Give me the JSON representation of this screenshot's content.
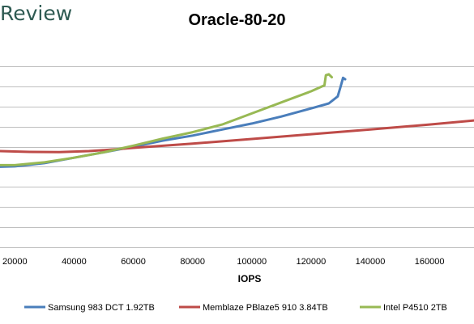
{
  "brand": {
    "text": "Review"
  },
  "chart_data": {
    "type": "line",
    "title": "Oracle-80-20",
    "xlabel": "IOPS",
    "ylabel": "",
    "xlim": [
      15000,
      175000
    ],
    "ylim": [
      0,
      10
    ],
    "x_ticks": [
      20000,
      40000,
      60000,
      80000,
      100000,
      120000,
      140000,
      160000
    ],
    "x_tick_labels": [
      "20000",
      "40000",
      "60000",
      "80000",
      "100000",
      "120000",
      "140000",
      "160000"
    ],
    "y_grid": [
      0,
      1,
      2,
      3,
      4,
      5,
      6,
      7,
      8,
      9
    ],
    "grid": true,
    "legend_position": "bottom",
    "series": [
      {
        "name": "Samsung 983 DCT 1.92TB",
        "color": "#4a7ebb",
        "points": [
          [
            15000,
            4.0
          ],
          [
            20000,
            4.02
          ],
          [
            30000,
            4.18
          ],
          [
            40000,
            4.45
          ],
          [
            50000,
            4.72
          ],
          [
            60000,
            5.0
          ],
          [
            70000,
            5.3
          ],
          [
            80000,
            5.55
          ],
          [
            90000,
            5.85
          ],
          [
            100000,
            6.15
          ],
          [
            110000,
            6.5
          ],
          [
            120000,
            6.9
          ],
          [
            126000,
            7.15
          ],
          [
            129000,
            7.5
          ],
          [
            130000,
            8.0
          ],
          [
            130800,
            8.42
          ],
          [
            131500,
            8.35
          ]
        ]
      },
      {
        "name": "Memblaze PBlaze5 910 3.84TB",
        "color": "#be4b48",
        "points": [
          [
            15000,
            4.78
          ],
          [
            25000,
            4.74
          ],
          [
            35000,
            4.73
          ],
          [
            45000,
            4.78
          ],
          [
            55000,
            4.88
          ],
          [
            60000,
            4.94
          ],
          [
            80000,
            5.15
          ],
          [
            100000,
            5.38
          ],
          [
            120000,
            5.62
          ],
          [
            140000,
            5.85
          ],
          [
            160000,
            6.1
          ],
          [
            175000,
            6.3
          ]
        ]
      },
      {
        "name": "Intel P4510 2TB",
        "color": "#98b954",
        "points": [
          [
            15000,
            4.08
          ],
          [
            20000,
            4.08
          ],
          [
            30000,
            4.22
          ],
          [
            40000,
            4.45
          ],
          [
            50000,
            4.72
          ],
          [
            60000,
            5.05
          ],
          [
            70000,
            5.4
          ],
          [
            80000,
            5.72
          ],
          [
            90000,
            6.1
          ],
          [
            100000,
            6.65
          ],
          [
            110000,
            7.2
          ],
          [
            120000,
            7.75
          ],
          [
            124500,
            8.05
          ],
          [
            125000,
            8.55
          ],
          [
            126000,
            8.6
          ],
          [
            127000,
            8.45
          ]
        ]
      }
    ]
  }
}
